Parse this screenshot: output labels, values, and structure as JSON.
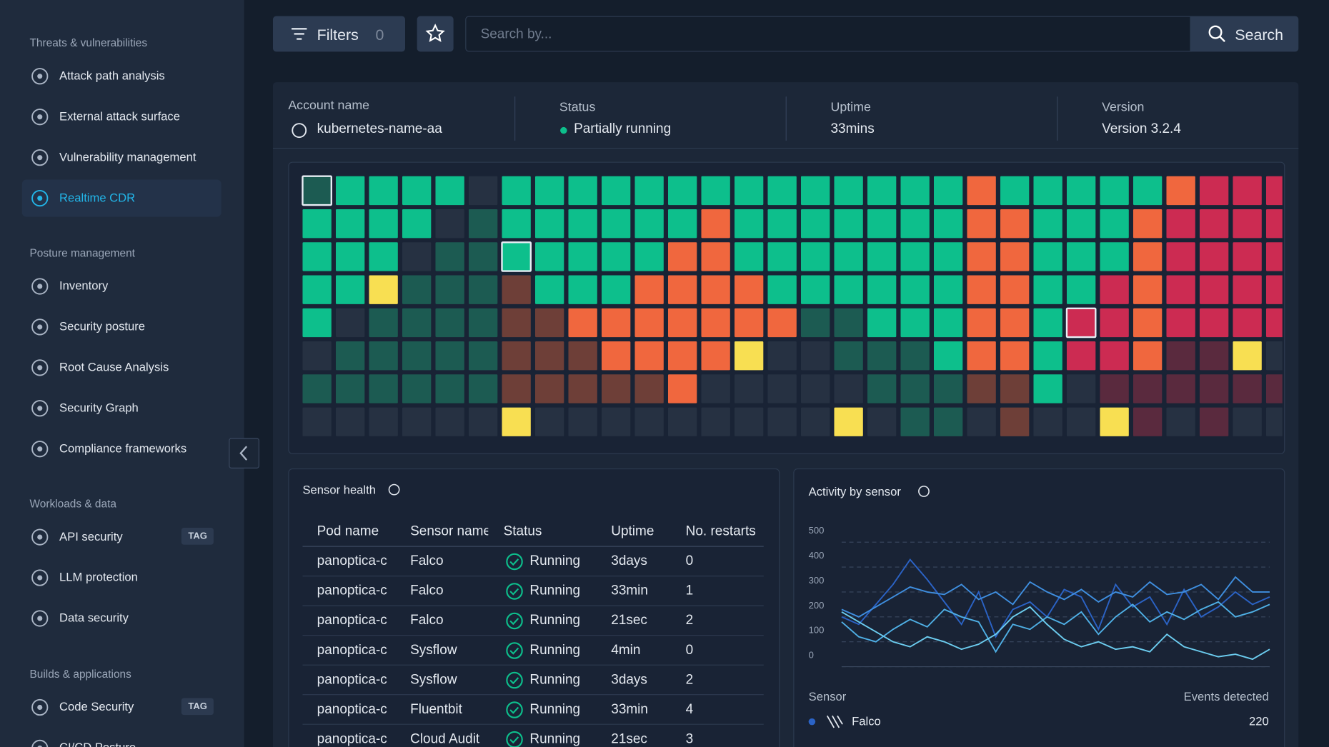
{
  "sidebar": {
    "sections": [
      {
        "title": "Threats & vulnerabilities",
        "items": [
          {
            "label": "Attack path analysis"
          },
          {
            "label": "External attack surface"
          },
          {
            "label": "Vulnerability management"
          },
          {
            "label": "Realtime CDR",
            "active": true
          }
        ]
      },
      {
        "title": "Posture management",
        "items": [
          {
            "label": "Inventory"
          },
          {
            "label": "Security posture"
          },
          {
            "label": "Root Cause Analysis"
          },
          {
            "label": "Security Graph"
          },
          {
            "label": "Compliance frameworks"
          }
        ]
      },
      {
        "title": "Workloads & data",
        "items": [
          {
            "label": "API security",
            "tag": "TAG"
          },
          {
            "label": "LLM protection"
          },
          {
            "label": "Data security"
          }
        ]
      },
      {
        "title": "Builds & applications",
        "items": [
          {
            "label": "Code Security",
            "tag": "TAG"
          },
          {
            "label": "CI/CD Posture"
          }
        ]
      }
    ]
  },
  "toolbar": {
    "filters": "Filters",
    "filter_count": "0",
    "search_placeholder": "Search by...",
    "search_button": "Search"
  },
  "account": {
    "fields": [
      {
        "label": "Account name",
        "value": "kubernetes-name-aa"
      },
      {
        "label": "Status",
        "value": "Partially running"
      },
      {
        "label": "Uptime",
        "value": "33mins"
      },
      {
        "label": "Version",
        "value": "Version 3.2.4"
      }
    ]
  },
  "sensor_health": {
    "title": "Sensor health",
    "columns": [
      "Pod name",
      "Sensor name",
      "Status",
      "Uptime",
      "No. restarts"
    ],
    "rows": [
      [
        "panoptica-c",
        "Falco",
        "Running",
        "3days",
        "0"
      ],
      [
        "panoptica-c",
        "Falco",
        "Running",
        "33min",
        "1"
      ],
      [
        "panoptica-c",
        "Falco",
        "Running",
        "21sec",
        "2"
      ],
      [
        "panoptica-c",
        "Sysflow",
        "Running",
        "4min",
        "0"
      ],
      [
        "panoptica-c",
        "Sysflow",
        "Running",
        "3days",
        "2"
      ],
      [
        "panoptica-c",
        "Fluentbit",
        "Running",
        "33min",
        "4"
      ],
      [
        "panoptica-c",
        "Cloud Audit",
        "Running",
        "21sec",
        "3"
      ]
    ]
  },
  "chart_data": {
    "type": "line",
    "title": "Activity by sensor",
    "ylim": [
      0,
      500
    ],
    "yticks": [
      0,
      100,
      200,
      300,
      400,
      500
    ],
    "grid": true,
    "series": [
      {
        "color": "#2b63c6",
        "values": [
          200,
          170,
          250,
          330,
          430,
          350,
          260,
          170,
          300,
          120,
          230,
          260,
          200,
          310,
          280,
          150,
          330,
          240,
          280,
          170,
          310,
          200,
          240,
          300,
          250,
          280
        ]
      },
      {
        "color": "#3f8fe0",
        "values": [
          230,
          200,
          240,
          280,
          320,
          300,
          290,
          330,
          270,
          300,
          250,
          340,
          300,
          270,
          310,
          260,
          300,
          280,
          340,
          290,
          300,
          330,
          270,
          360,
          300,
          300
        ]
      },
      {
        "color": "#4fb0e6",
        "values": [
          180,
          120,
          100,
          150,
          190,
          160,
          230,
          200,
          180,
          60,
          170,
          150,
          200,
          170,
          220,
          130,
          200,
          250,
          180,
          220,
          190,
          230,
          260,
          200,
          220,
          250
        ]
      },
      {
        "color": "#6ccdf0",
        "values": [
          220,
          180,
          140,
          100,
          80,
          120,
          100,
          70,
          90,
          130,
          200,
          240,
          170,
          110,
          80,
          100,
          70,
          80,
          60,
          130,
          80,
          60,
          40,
          50,
          30,
          70
        ]
      }
    ],
    "legend_table": {
      "columns": [
        "Sensor",
        "Events detected"
      ],
      "rows": [
        [
          "Falco",
          220
        ]
      ]
    }
  }
}
